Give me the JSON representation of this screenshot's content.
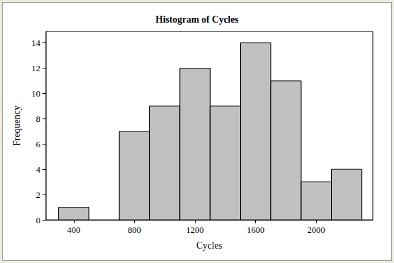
{
  "chart_data": {
    "type": "histogram",
    "title": "Histogram of Cycles",
    "x_label": "Cycles",
    "y_label": "Frequency",
    "bins": [
      300,
      500,
      700,
      900,
      1100,
      1300,
      1500,
      1700,
      1900,
      2100,
      2300
    ],
    "counts": [
      1,
      0,
      7,
      9,
      12,
      9,
      14,
      11,
      3,
      4
    ],
    "color": "#c0c0c0",
    "xlim": [
      216,
      2373
    ],
    "xticks": [
      400,
      800,
      1200,
      1600,
      2000
    ],
    "ylim": [
      0,
      14.9
    ],
    "yticks": [
      0,
      2,
      4,
      6,
      8,
      10,
      12,
      14
    ],
    "grid": false
  }
}
